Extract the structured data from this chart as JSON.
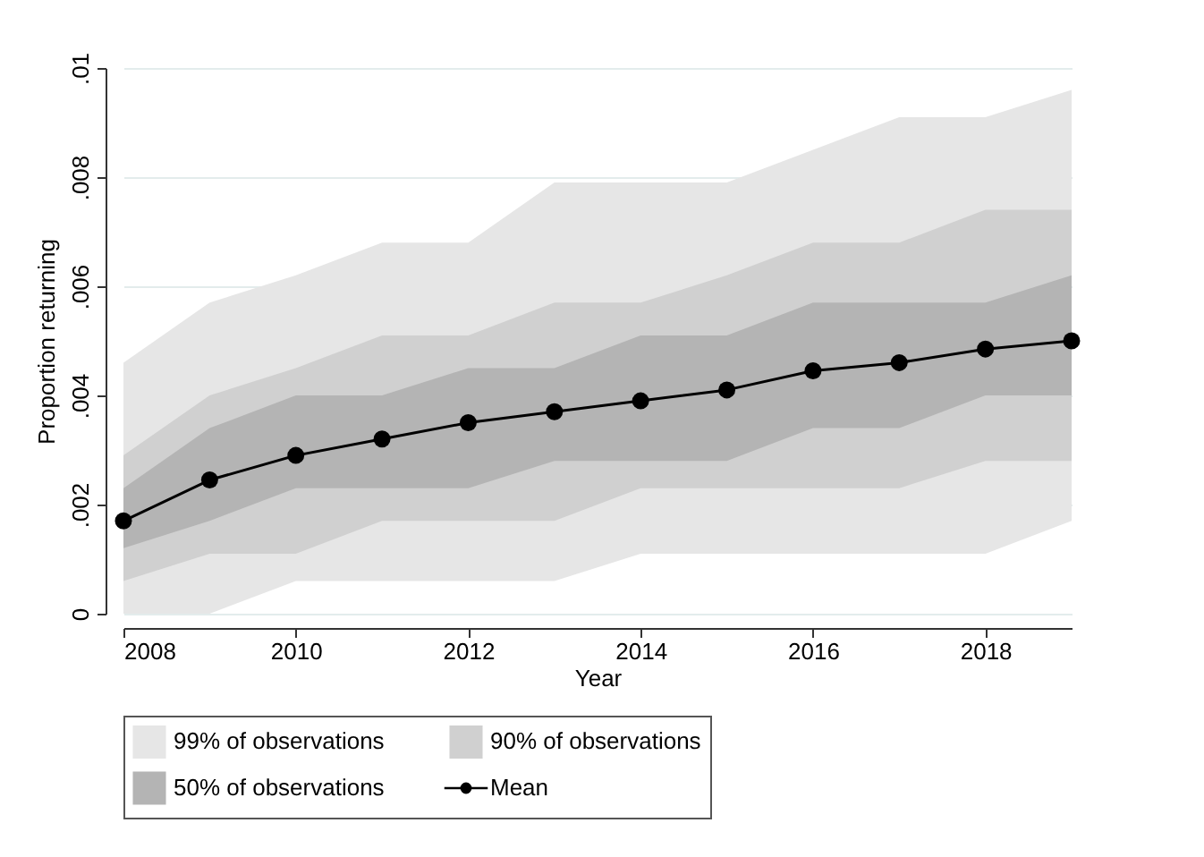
{
  "chart_data": {
    "type": "line",
    "xlabel": "Year",
    "ylabel": "Proportion returning",
    "x": [
      2008,
      2009,
      2010,
      2011,
      2012,
      2013,
      2014,
      2015,
      2016,
      2017,
      2018,
      2019
    ],
    "series": [
      {
        "name": "99% of observations",
        "type": "area",
        "color": "#e6e6e6",
        "values": [
          null,
          null,
          null,
          null,
          null,
          null,
          null,
          null,
          null,
          null,
          null,
          null
        ],
        "lower": [
          0,
          0,
          0.0006,
          0.0006,
          0.0006,
          0.0006,
          0.0011,
          0.0011,
          0.0011,
          0.0011,
          0.0011,
          0.0017
        ],
        "upper": [
          0.0046,
          0.0057,
          0.0062,
          0.0068,
          0.0068,
          0.0079,
          0.0079,
          0.0079,
          0.0085,
          0.0091,
          0.0091,
          0.0096
        ]
      },
      {
        "name": "90% of observations",
        "type": "area",
        "color": "#d0d0d0",
        "values": [
          null,
          null,
          null,
          null,
          null,
          null,
          null,
          null,
          null,
          null,
          null,
          null
        ],
        "lower": [
          0.0006,
          0.0011,
          0.0011,
          0.0017,
          0.0017,
          0.0017,
          0.0023,
          0.0023,
          0.0023,
          0.0023,
          0.0028,
          0.0028
        ],
        "upper": [
          0.0029,
          0.004,
          0.0045,
          0.0051,
          0.0051,
          0.0057,
          0.0057,
          0.0062,
          0.0068,
          0.0068,
          0.0074,
          0.0074
        ]
      },
      {
        "name": "50% of observations",
        "type": "area",
        "color": "#b4b4b4",
        "values": [
          null,
          null,
          null,
          null,
          null,
          null,
          null,
          null,
          null,
          null,
          null,
          null
        ],
        "lower": [
          0.0012,
          0.0017,
          0.0023,
          0.0023,
          0.0023,
          0.0028,
          0.0028,
          0.0028,
          0.0034,
          0.0034,
          0.004,
          0.004
        ],
        "upper": [
          0.0023,
          0.0034,
          0.004,
          0.004,
          0.0045,
          0.0045,
          0.0051,
          0.0051,
          0.0057,
          0.0057,
          0.0057,
          0.0062
        ]
      },
      {
        "name": "Mean",
        "marker": "circle",
        "color": "#000000",
        "values": [
          0.0017,
          0.00245,
          0.0029,
          0.0032,
          0.0035,
          0.0037,
          0.0039,
          0.0041,
          0.00445,
          0.0046,
          0.00485,
          0.005
        ]
      }
    ],
    "xlim": [
      2008,
      2019
    ],
    "xticks": [
      2008,
      2010,
      2012,
      2014,
      2016,
      2018
    ],
    "ylim": [
      0,
      0.01
    ],
    "yticks": [
      0,
      {
        "value": 0.002,
        "label": ".002"
      },
      {
        "value": 0.004,
        "label": ".004"
      },
      {
        "value": 0.006,
        "label": ".006"
      },
      {
        "value": 0.008,
        "label": ".008"
      },
      {
        "value": 0.01,
        "label": ".01"
      }
    ],
    "grid": "y",
    "legend": "bottom",
    "line_style": "solid"
  }
}
